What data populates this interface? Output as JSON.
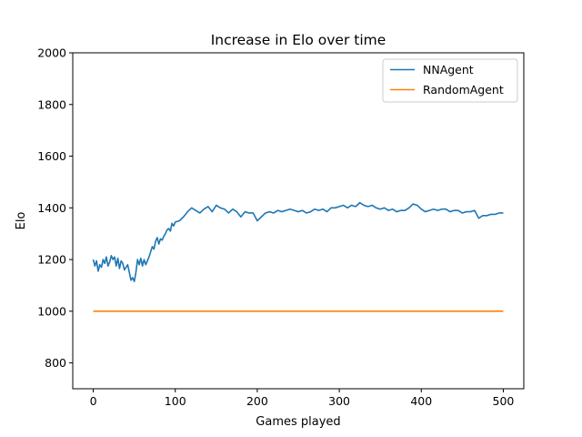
{
  "chart_data": {
    "type": "line",
    "title": "Increase in Elo over time",
    "xlabel": "Games played",
    "ylabel": "Elo",
    "xlim": [
      -25,
      525
    ],
    "ylim": [
      700,
      2000
    ],
    "xticks": [
      0,
      100,
      200,
      300,
      400,
      500
    ],
    "yticks": [
      800,
      1000,
      1200,
      1400,
      1600,
      1800,
      2000
    ],
    "grid": false,
    "legend_position": "top-right",
    "series": [
      {
        "name": "NNAgent",
        "color": "#1f77b4",
        "x": [
          0,
          2,
          4,
          6,
          8,
          10,
          12,
          14,
          16,
          18,
          20,
          22,
          24,
          26,
          28,
          30,
          32,
          34,
          36,
          38,
          40,
          42,
          44,
          46,
          48,
          50,
          52,
          54,
          56,
          58,
          60,
          62,
          64,
          66,
          68,
          70,
          72,
          74,
          76,
          78,
          80,
          82,
          84,
          86,
          88,
          90,
          92,
          94,
          96,
          98,
          100,
          105,
          110,
          115,
          120,
          125,
          130,
          135,
          140,
          145,
          150,
          155,
          160,
          165,
          170,
          175,
          180,
          185,
          190,
          195,
          200,
          205,
          210,
          215,
          220,
          225,
          230,
          235,
          240,
          245,
          250,
          255,
          260,
          265,
          270,
          275,
          280,
          285,
          290,
          295,
          300,
          305,
          310,
          315,
          320,
          325,
          330,
          335,
          340,
          345,
          350,
          355,
          360,
          365,
          370,
          375,
          380,
          385,
          390,
          395,
          400,
          405,
          410,
          415,
          420,
          425,
          430,
          435,
          440,
          445,
          450,
          455,
          460,
          465,
          470,
          475,
          480,
          485,
          490,
          495,
          500
        ],
        "values": [
          1200,
          1175,
          1195,
          1155,
          1180,
          1170,
          1200,
          1185,
          1210,
          1175,
          1190,
          1215,
          1200,
          1210,
          1175,
          1205,
          1165,
          1195,
          1185,
          1160,
          1170,
          1180,
          1150,
          1120,
          1130,
          1115,
          1150,
          1200,
          1180,
          1205,
          1175,
          1200,
          1180,
          1195,
          1210,
          1230,
          1250,
          1240,
          1270,
          1285,
          1260,
          1280,
          1275,
          1290,
          1300,
          1315,
          1320,
          1310,
          1340,
          1330,
          1345,
          1350,
          1365,
          1385,
          1400,
          1390,
          1380,
          1395,
          1405,
          1385,
          1410,
          1400,
          1395,
          1380,
          1395,
          1385,
          1365,
          1385,
          1380,
          1380,
          1350,
          1365,
          1380,
          1385,
          1380,
          1390,
          1385,
          1390,
          1395,
          1390,
          1385,
          1390,
          1380,
          1385,
          1395,
          1390,
          1395,
          1385,
          1400,
          1400,
          1405,
          1410,
          1400,
          1410,
          1405,
          1420,
          1410,
          1405,
          1410,
          1400,
          1395,
          1400,
          1390,
          1395,
          1385,
          1390,
          1390,
          1400,
          1415,
          1410,
          1395,
          1385,
          1390,
          1395,
          1390,
          1395,
          1395,
          1385,
          1390,
          1390,
          1380,
          1385,
          1385,
          1390,
          1360,
          1370,
          1370,
          1375,
          1375,
          1380,
          1380
        ]
      },
      {
        "name": "RandomAgent",
        "color": "#ff7f0e",
        "x": [
          0,
          500
        ],
        "values": [
          1000,
          1000
        ]
      }
    ]
  }
}
